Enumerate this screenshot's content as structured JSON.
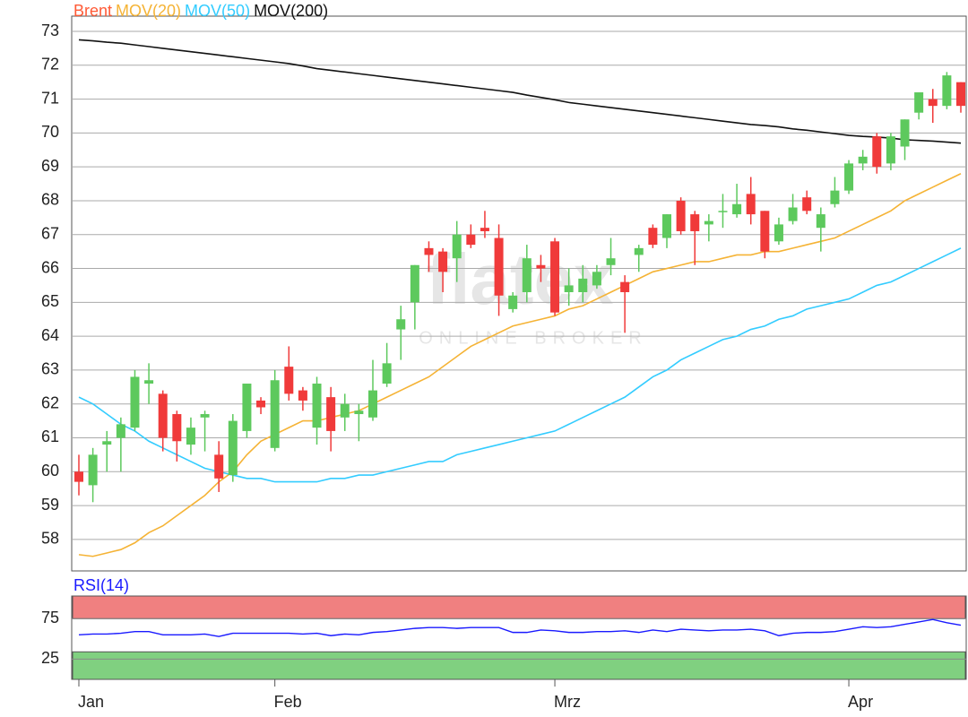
{
  "chart_data": [
    {
      "type": "candlestick",
      "name": "Brent",
      "name_color": "#ff5a36",
      "up_color": "#5dc95d",
      "down_color": "#f03a3a",
      "watermark": "flatex",
      "watermark_sub": "ONLINE BROKER",
      "categories": [
        "Jan",
        null,
        null,
        null,
        null,
        null,
        null,
        null,
        null,
        null,
        null,
        null,
        null,
        null,
        "Feb",
        null,
        null,
        null,
        null,
        null,
        null,
        null,
        null,
        null,
        null,
        null,
        null,
        null,
        null,
        null,
        null,
        null,
        null,
        null,
        "Mrz",
        null,
        null,
        null,
        null,
        null,
        null,
        null,
        null,
        null,
        null,
        null,
        null,
        null,
        null,
        null,
        null,
        null,
        null,
        null,
        null,
        "Apr",
        null,
        null,
        null,
        null,
        null,
        null,
        null,
        null
      ],
      "open": [
        60.0,
        59.6,
        60.8,
        61.0,
        61.3,
        62.6,
        62.3,
        61.7,
        60.8,
        61.6,
        60.5,
        59.9,
        61.2,
        62.1,
        60.7,
        63.1,
        62.4,
        61.3,
        62.2,
        61.6,
        61.7,
        61.6,
        62.6,
        64.2,
        65.0,
        66.6,
        66.5,
        66.3,
        67.0,
        67.2,
        66.9,
        64.8,
        65.3,
        66.1,
        66.8,
        65.3,
        65.3,
        65.5,
        66.1,
        65.6,
        66.4,
        67.2,
        66.9,
        68.0,
        67.6,
        67.3,
        67.7,
        67.6,
        68.2,
        67.7,
        66.8,
        67.4,
        68.1,
        67.2,
        67.9,
        68.3,
        69.1,
        69.9,
        69.1,
        69.6,
        70.6,
        71.0,
        70.8,
        71.5
      ],
      "high": [
        60.5,
        60.7,
        61.2,
        61.6,
        63.0,
        63.2,
        62.4,
        61.8,
        61.6,
        61.8,
        60.9,
        61.7,
        62.6,
        62.2,
        63.0,
        63.7,
        62.5,
        62.8,
        62.5,
        62.3,
        62.0,
        63.3,
        63.8,
        64.9,
        66.1,
        66.8,
        66.6,
        67.4,
        67.3,
        67.7,
        67.3,
        65.3,
        66.7,
        66.4,
        66.9,
        66.0,
        66.1,
        66.1,
        66.9,
        65.8,
        66.7,
        67.3,
        67.6,
        68.1,
        67.7,
        67.6,
        68.2,
        68.5,
        68.7,
        67.7,
        67.5,
        68.2,
        68.3,
        67.8,
        68.7,
        69.2,
        69.5,
        70.0,
        70.0,
        70.4,
        71.2,
        71.3,
        71.8,
        71.5
      ],
      "low": [
        59.3,
        59.1,
        60.0,
        60.0,
        61.2,
        62.0,
        60.6,
        60.3,
        60.5,
        60.6,
        59.4,
        59.7,
        61.0,
        61.7,
        60.6,
        62.1,
        61.8,
        60.8,
        60.6,
        61.2,
        60.9,
        61.5,
        62.5,
        63.3,
        64.2,
        65.9,
        65.3,
        65.6,
        66.6,
        66.9,
        64.6,
        64.7,
        65.0,
        65.6,
        64.6,
        64.9,
        65.0,
        65.4,
        65.8,
        64.1,
        65.9,
        66.6,
        66.6,
        67.0,
        66.1,
        66.8,
        67.2,
        67.5,
        67.3,
        66.3,
        66.7,
        67.3,
        67.6,
        66.5,
        67.8,
        68.2,
        68.9,
        68.8,
        68.9,
        69.2,
        70.4,
        70.3,
        70.7,
        70.6
      ],
      "close": [
        59.7,
        60.5,
        60.9,
        61.4,
        62.8,
        62.7,
        61.0,
        60.9,
        61.3,
        61.7,
        59.8,
        61.5,
        62.6,
        61.9,
        62.7,
        62.3,
        62.1,
        62.6,
        61.2,
        62.0,
        61.8,
        62.4,
        63.2,
        64.5,
        66.1,
        66.4,
        65.9,
        67.0,
        66.7,
        67.1,
        65.2,
        65.2,
        66.3,
        66.0,
        64.7,
        65.5,
        65.7,
        65.9,
        66.3,
        65.3,
        66.6,
        66.7,
        67.6,
        67.1,
        67.1,
        67.4,
        67.7,
        67.9,
        67.6,
        66.5,
        67.3,
        67.8,
        67.7,
        67.6,
        68.3,
        69.1,
        69.3,
        69.0,
        69.9,
        70.4,
        71.2,
        70.8,
        71.7,
        70.8
      ],
      "overlays": [
        {
          "name": "MOV(20)",
          "color": "#f5b335",
          "values": [
            57.55,
            57.5,
            57.6,
            57.7,
            57.9,
            58.2,
            58.4,
            58.7,
            59.0,
            59.3,
            59.7,
            60.0,
            60.5,
            60.9,
            61.1,
            61.3,
            61.5,
            61.5,
            61.6,
            61.7,
            61.8,
            62.0,
            62.2,
            62.4,
            62.6,
            62.8,
            63.1,
            63.4,
            63.7,
            63.9,
            64.1,
            64.3,
            64.4,
            64.5,
            64.6,
            64.8,
            64.9,
            65.1,
            65.3,
            65.5,
            65.7,
            65.9,
            66.0,
            66.1,
            66.2,
            66.2,
            66.3,
            66.4,
            66.4,
            66.5,
            66.5,
            66.6,
            66.7,
            66.8,
            66.9,
            67.1,
            67.3,
            67.5,
            67.7,
            68.0,
            68.2,
            68.4,
            68.6,
            68.8
          ]
        },
        {
          "name": "MOV(50)",
          "color": "#33ccff",
          "values": [
            62.2,
            62.0,
            61.7,
            61.4,
            61.2,
            60.9,
            60.7,
            60.5,
            60.3,
            60.1,
            60.0,
            59.9,
            59.8,
            59.8,
            59.7,
            59.7,
            59.7,
            59.7,
            59.8,
            59.8,
            59.9,
            59.9,
            60.0,
            60.1,
            60.2,
            60.3,
            60.3,
            60.5,
            60.6,
            60.7,
            60.8,
            60.9,
            61.0,
            61.1,
            61.2,
            61.4,
            61.6,
            61.8,
            62.0,
            62.2,
            62.5,
            62.8,
            63.0,
            63.3,
            63.5,
            63.7,
            63.9,
            64.0,
            64.2,
            64.3,
            64.5,
            64.6,
            64.8,
            64.9,
            65.0,
            65.1,
            65.3,
            65.5,
            65.6,
            65.8,
            66.0,
            66.2,
            66.4,
            66.6
          ]
        },
        {
          "name": "MOV(200)",
          "color": "#111111",
          "values": [
            72.75,
            72.72,
            72.68,
            72.65,
            72.6,
            72.55,
            72.5,
            72.45,
            72.4,
            72.35,
            72.3,
            72.25,
            72.2,
            72.15,
            72.1,
            72.05,
            71.98,
            71.9,
            71.85,
            71.8,
            71.75,
            71.7,
            71.65,
            71.6,
            71.55,
            71.5,
            71.45,
            71.4,
            71.35,
            71.3,
            71.25,
            71.2,
            71.12,
            71.05,
            70.98,
            70.9,
            70.85,
            70.8,
            70.75,
            70.7,
            70.65,
            70.6,
            70.55,
            70.5,
            70.45,
            70.4,
            70.35,
            70.3,
            70.25,
            70.22,
            70.18,
            70.12,
            70.08,
            70.03,
            69.98,
            69.93,
            69.9,
            69.88,
            69.85,
            69.8,
            69.78,
            69.76,
            69.73,
            69.7
          ]
        }
      ],
      "ylim": [
        57.07,
        73.45
      ],
      "yticks": [
        58,
        59,
        60,
        61,
        62,
        63,
        64,
        65,
        66,
        67,
        68,
        69,
        70,
        71,
        72,
        73
      ],
      "grid": true
    },
    {
      "type": "line",
      "series": [
        {
          "name": "RSI(14)",
          "color": "#1a1aff",
          "values": [
            55,
            56,
            56,
            57,
            59,
            59,
            55,
            55,
            55,
            56,
            53,
            57,
            57,
            57,
            57,
            57,
            56,
            57,
            54,
            56,
            55,
            58,
            59,
            61,
            63,
            64,
            64,
            63,
            64,
            64,
            64,
            58,
            58,
            61,
            60,
            58,
            58,
            59,
            59,
            60,
            58,
            61,
            59,
            62,
            61,
            60,
            61,
            61,
            62,
            60,
            54,
            57,
            58,
            58,
            59,
            62,
            65,
            64,
            65,
            68,
            71,
            74,
            70,
            67
          ]
        }
      ],
      "bands": [
        {
          "from": 75,
          "to": 103,
          "color": "#f08080"
        },
        {
          "from": 0,
          "to": 34,
          "color": "#80d080"
        }
      ],
      "ylim": [
        0,
        103
      ],
      "yticks": [
        25,
        75
      ]
    }
  ]
}
